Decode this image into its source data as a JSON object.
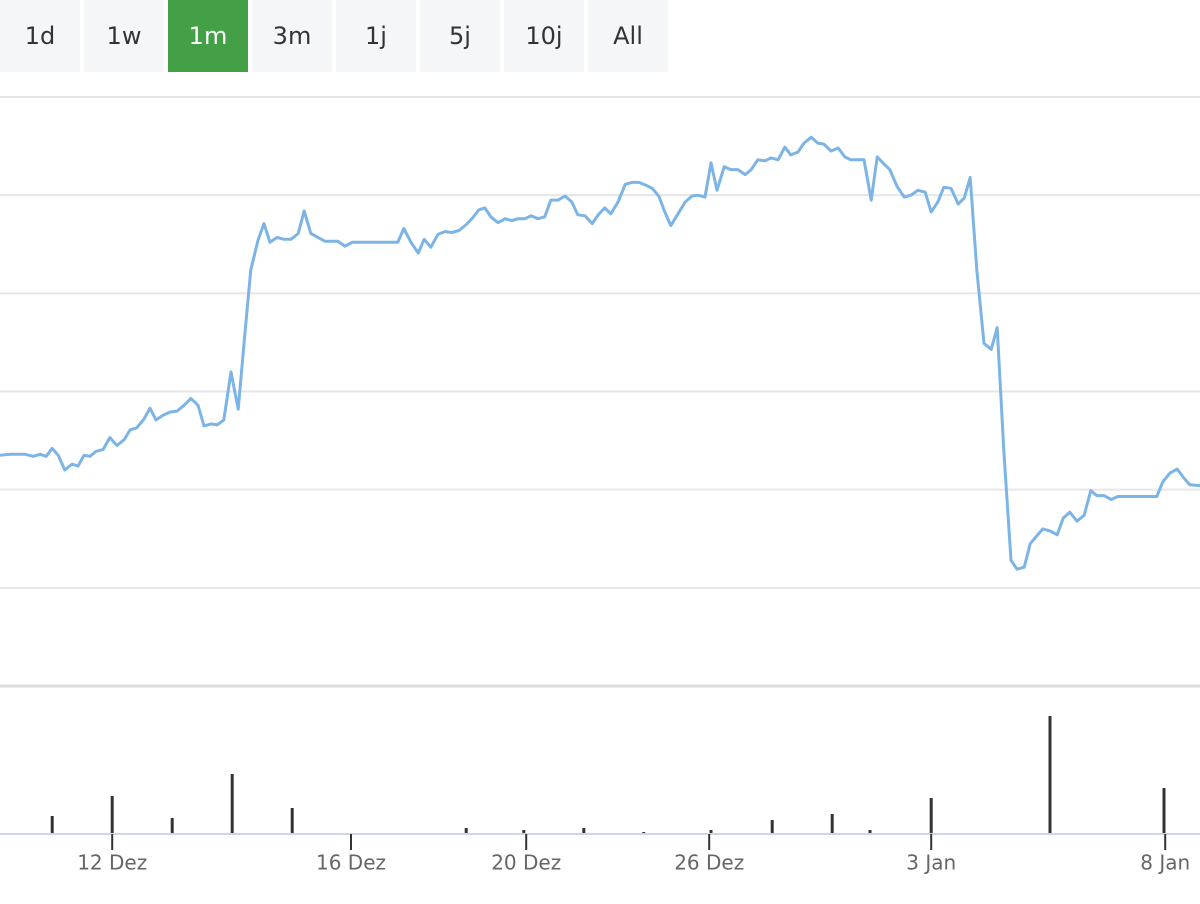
{
  "range_selector": {
    "buttons": [
      "1d",
      "1w",
      "1m",
      "3m",
      "1j",
      "5j",
      "10j",
      "All"
    ],
    "active_index": 2,
    "active_color": "#43a047"
  },
  "chart_data": [
    {
      "type": "line",
      "color": "#7db4e6",
      "xlim": [
        0,
        200
      ],
      "ylim": [
        0,
        60
      ],
      "yticks": [
        0,
        10,
        20,
        30,
        40,
        50,
        60
      ],
      "grid": true,
      "ytick_labels": false,
      "x": [
        0,
        1.7,
        4.2,
        5.5,
        6.7,
        7.7,
        8.7,
        9.7,
        10.8,
        12,
        13,
        14,
        15,
        16,
        17.2,
        18.3,
        19.5,
        20.7,
        21.7,
        22.8,
        24,
        25,
        26,
        27.2,
        28.3,
        29.5,
        30.7,
        31.8,
        33,
        34,
        35.2,
        36.2,
        37.3,
        38.5,
        39.7,
        40.8,
        41.8,
        43,
        44,
        45,
        46.2,
        47.3,
        48.5,
        49.7,
        50.7,
        51.8,
        53,
        54.2,
        56.3,
        57.5,
        58.7,
        60.8,
        64.2,
        66.3,
        67.3,
        68.5,
        69.7,
        70.7,
        71.8,
        73,
        74.2,
        75.3,
        76.5,
        77.7,
        78.8,
        79.8,
        80.8,
        81.8,
        83,
        84.2,
        85.3,
        86.3,
        87.5,
        88.5,
        89.7,
        90.8,
        91.8,
        93,
        94.2,
        95.3,
        96.3,
        97.5,
        98.7,
        99.7,
        100.8,
        101.8,
        103,
        104.2,
        105.3,
        106.5,
        107.7,
        108.7,
        109.8,
        110.8,
        111.8,
        113,
        114.2,
        115.3,
        116.3,
        117.5,
        118.5,
        119.5,
        120.7,
        121.8,
        123,
        124.2,
        125.2,
        126.3,
        127.5,
        128.5,
        129.7,
        130.8,
        131.8,
        133,
        134,
        135.2,
        136.3,
        137.3,
        138.5,
        139.7,
        140.8,
        141.8,
        143,
        144,
        145.2,
        146.2,
        147.3,
        148.3,
        149.5,
        150.7,
        151.8,
        153,
        154.2,
        155.2,
        156.3,
        157.3,
        158.5,
        159.7,
        160.7,
        161.7,
        162.8,
        164,
        165.2,
        166.2,
        167.3,
        168.5,
        169.5,
        170.7,
        171.7,
        172.8,
        173.8,
        175,
        176.2,
        177.2,
        178.3,
        179.5,
        180.7,
        181.8,
        182.8,
        184,
        185.2,
        186.3,
        192.8,
        193.8,
        195,
        196.2,
        197.3,
        198.3,
        200
      ],
      "values": [
        23.5,
        23.6,
        23.6,
        23.4,
        23.6,
        23.4,
        24.2,
        23.5,
        22.0,
        22.6,
        22.4,
        23.5,
        23.4,
        23.9,
        24.1,
        25.3,
        24.5,
        25.1,
        26.1,
        26.3,
        27.2,
        28.3,
        27.1,
        27.6,
        27.9,
        28.0,
        28.6,
        29.3,
        28.6,
        26.5,
        26.7,
        26.6,
        27.1,
        32.0,
        28.2,
        35.8,
        42.4,
        45.4,
        47.1,
        45.2,
        45.7,
        45.5,
        45.5,
        46.1,
        48.4,
        46.1,
        45.7,
        45.3,
        45.3,
        44.8,
        45.2,
        45.2,
        45.2,
        45.2,
        46.6,
        45.2,
        44.1,
        45.5,
        44.7,
        46.0,
        46.3,
        46.2,
        46.4,
        47.0,
        47.7,
        48.5,
        48.7,
        47.8,
        47.2,
        47.6,
        47.4,
        47.6,
        47.6,
        47.9,
        47.6,
        47.8,
        49.5,
        49.5,
        49.9,
        49.3,
        48.0,
        47.9,
        47.1,
        48.0,
        48.7,
        48.1,
        49.3,
        51.1,
        51.3,
        51.3,
        51.0,
        50.7,
        49.9,
        48.3,
        46.9,
        48.1,
        49.3,
        49.9,
        50.0,
        49.8,
        53.3,
        50.5,
        52.9,
        52.6,
        52.6,
        52.1,
        52.6,
        53.6,
        53.5,
        53.8,
        53.6,
        54.9,
        54.1,
        54.4,
        55.3,
        55.9,
        55.3,
        55.2,
        54.5,
        54.8,
        53.9,
        53.6,
        53.6,
        53.6,
        49.5,
        53.9,
        53.2,
        52.6,
        50.9,
        49.8,
        50.0,
        50.5,
        50.3,
        48.3,
        49.3,
        50.8,
        50.7,
        49.1,
        49.7,
        51.8,
        42.4,
        34.9,
        34.3,
        36.5,
        24.0,
        12.8,
        11.9,
        12.1,
        14.5,
        15.3,
        16.0,
        15.8,
        15.4,
        17.1,
        17.7,
        16.8,
        17.4,
        19.9,
        19.4,
        19.4,
        19.0,
        19.3,
        19.3,
        20.8,
        21.7,
        22.1,
        21.2,
        20.5,
        20.4
      ]
    },
    {
      "type": "bar",
      "color": "#333333",
      "xlim": [
        0,
        200
      ],
      "ylim": [
        0,
        120
      ],
      "x": [
        8.7,
        18.7,
        28.7,
        38.7,
        48.7,
        77.7,
        87.3,
        97.3,
        107.3,
        118.5,
        128.7,
        138.7,
        145,
        155.2,
        175,
        194
      ],
      "values": [
        18,
        38,
        16,
        60,
        26,
        6,
        4,
        6,
        2,
        4,
        14,
        20,
        4,
        36,
        118,
        46
      ],
      "xticks": [
        {
          "value": 18.7,
          "label": "12 Dez"
        },
        {
          "value": 58.5,
          "label": "16 Dez"
        },
        {
          "value": 87.7,
          "label": "20 Dez"
        },
        {
          "value": 118.2,
          "label": "26 Dez"
        },
        {
          "value": 155.2,
          "label": "3 Jan"
        },
        {
          "value": 194.2,
          "label": "8 Jan"
        }
      ]
    }
  ]
}
